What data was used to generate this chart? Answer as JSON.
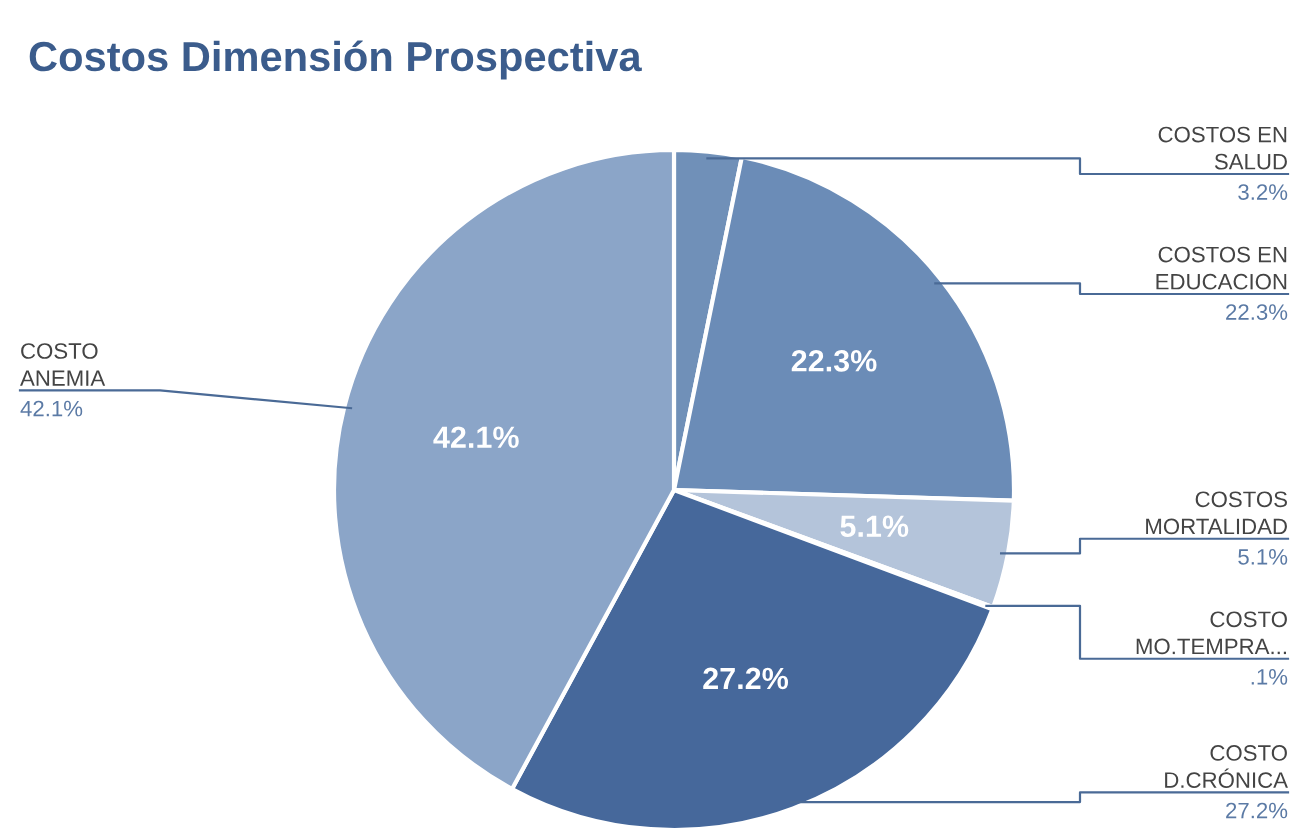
{
  "chart_data": {
    "type": "pie",
    "title": "Costos Dimensión Prospectiva",
    "categories": [
      "COSTOS EN\nSALUD",
      "COSTOS EN\nEDUCACION",
      "COSTOS\nMORTALIDAD",
      "COSTO\nMO.TEMPRA...",
      "COSTO\nD.CRÓNICA",
      "COSTO\nANEMIA"
    ],
    "values": [
      3.2,
      22.3,
      5.1,
      0.1,
      27.2,
      42.1
    ],
    "value_labels": [
      "3.2%",
      "22.3%",
      "5.1%",
      ".1%",
      "27.2%",
      "42.1%"
    ],
    "colors": [
      "#7090b8",
      "#6b8cb7",
      "#b4c4da",
      "#9fb4cf",
      "#46689b",
      "#8ba5c8"
    ]
  }
}
